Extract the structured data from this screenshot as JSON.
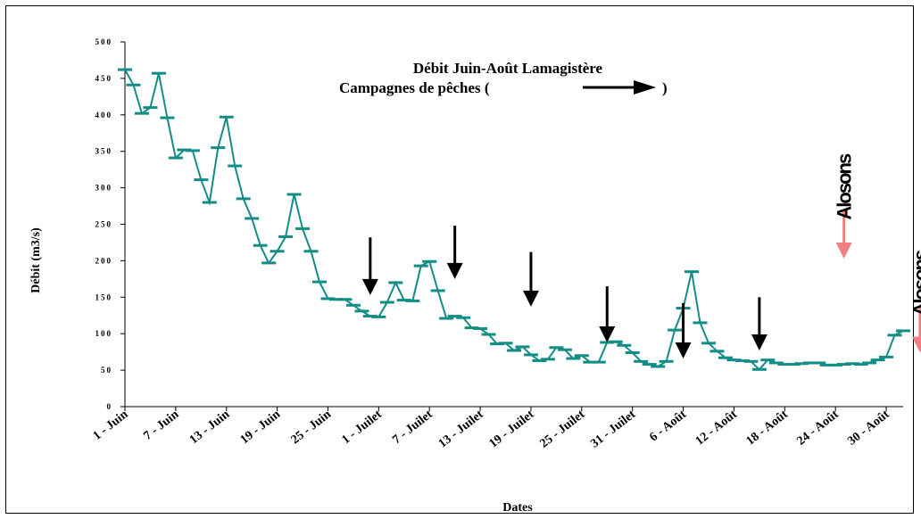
{
  "chart_data": {
    "type": "line",
    "title_line1": "Débit Juin-Août Lamagistère",
    "title_line2_prefix": "Campagnes de pêches (",
    "title_line2_suffix": ")",
    "xlabel": "Dates",
    "ylabel": "Débit (m3/s)",
    "ylim": [
      0,
      500
    ],
    "yticks": [
      0,
      50,
      100,
      150,
      200,
      250,
      300,
      350,
      400,
      450,
      500
    ],
    "xtick_labels": [
      "1 - Juin",
      "7 - Juin",
      "13 - Juin",
      "19 - Juin",
      "25 - Juin",
      "1 - Juilet",
      "7 - Juilet",
      "13 - Juilet",
      "19 - Juilet",
      "25 - Juilet",
      "31 - Juilet",
      "6 - Août",
      "12 - Août",
      "18 - Août",
      "24 - Août",
      "30 - Août"
    ],
    "series": [
      {
        "color": "#138D86",
        "values": [
          462,
          441,
          402,
          410,
          457,
          396,
          341,
          352,
          351,
          311,
          280,
          355,
          397,
          330,
          285,
          258,
          221,
          197,
          213,
          233,
          291,
          244,
          213,
          171,
          148,
          147,
          147,
          139,
          131,
          124,
          123,
          143,
          170,
          146,
          145,
          193,
          199,
          159,
          121,
          124,
          122,
          108,
          107,
          99,
          86,
          87,
          77,
          82,
          71,
          63,
          65,
          81,
          78,
          66,
          70,
          61,
          61,
          88,
          89,
          84,
          74,
          62,
          58,
          55,
          62,
          105,
          135,
          185,
          115,
          87,
          76,
          67,
          64,
          63,
          62,
          51,
          64,
          60,
          58,
          58,
          59,
          60,
          60,
          57,
          57,
          58,
          59,
          58,
          60,
          64,
          68,
          98,
          104
        ]
      }
    ],
    "arrows": [
      {
        "color": "black",
        "x_day": 29,
        "y_top": 232,
        "y_tip": 153
      },
      {
        "color": "black",
        "x_day": 39,
        "y_top": 248,
        "y_tip": 175
      },
      {
        "color": "black",
        "x_day": 48,
        "y_top": 212,
        "y_tip": 137
      },
      {
        "color": "black",
        "x_day": 57,
        "y_top": 165,
        "y_tip": 88
      },
      {
        "color": "black",
        "x_day": 66,
        "y_top": 142,
        "y_tip": 66
      },
      {
        "color": "black",
        "x_day": 75,
        "y_top": 150,
        "y_tip": 77
      },
      {
        "color": "#F08080",
        "x_day": 85,
        "y_top": 270,
        "y_tip": 203
      },
      {
        "color": "#F08080",
        "x_day": 94,
        "y_top": 140,
        "y_tip": 74
      }
    ],
    "annotations": [
      {
        "text": "Alosons",
        "x_day": 85,
        "y": 345
      },
      {
        "text": "Alosons",
        "x_day": 94,
        "y": 213
      }
    ]
  }
}
